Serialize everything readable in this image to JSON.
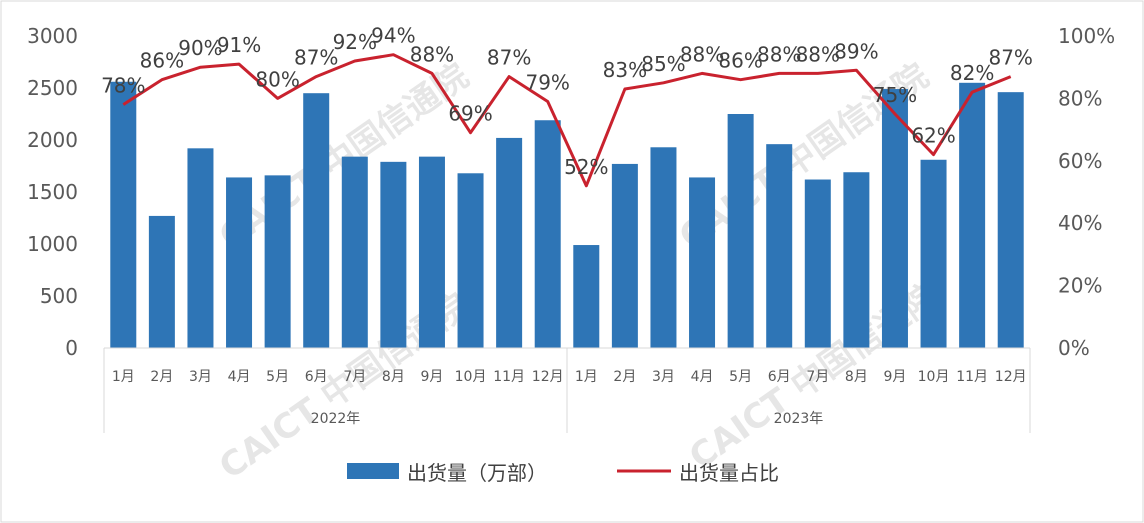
{
  "chart_data": {
    "type": "bar+line",
    "categories": [
      "1月",
      "2月",
      "3月",
      "4月",
      "5月",
      "6月",
      "7月",
      "8月",
      "9月",
      "10月",
      "11月",
      "12月",
      "1月",
      "2月",
      "3月",
      "4月",
      "5月",
      "6月",
      "7月",
      "8月",
      "9月",
      "10月",
      "11月",
      "12月"
    ],
    "groups": [
      {
        "label": "2022年",
        "from": 0,
        "to": 11
      },
      {
        "label": "2023年",
        "from": 12,
        "to": 23
      }
    ],
    "series": [
      {
        "name": "出货量（万部）",
        "type": "bar",
        "axis": "left",
        "color": "#2e75b6",
        "values": [
          2560,
          1270,
          1920,
          1640,
          1660,
          2450,
          1840,
          1790,
          1840,
          1680,
          2020,
          2190,
          990,
          1770,
          1930,
          1640,
          2250,
          1960,
          1620,
          1690,
          2490,
          1810,
          2550,
          2460
        ]
      },
      {
        "name": "出货量占比",
        "type": "line",
        "axis": "right",
        "color": "#c9222e",
        "values": [
          78,
          86,
          90,
          91,
          80,
          87,
          92,
          94,
          88,
          69,
          87,
          79,
          52,
          83,
          85,
          88,
          86,
          88,
          88,
          89,
          75,
          62,
          82,
          87
        ],
        "labels": [
          "78%",
          "86%",
          "90%",
          "91%",
          "80%",
          "87%",
          "92%",
          "94%",
          "88%",
          "69%",
          "87%",
          "79%",
          "52%",
          "83%",
          "85%",
          "88%",
          "86%",
          "88%",
          "88%",
          "89%",
          "75%",
          "62%",
          "82%",
          "87%"
        ]
      }
    ],
    "left_axis": {
      "min": 0,
      "max": 3000,
      "ticks": [
        "0",
        "500",
        "1000",
        "1500",
        "2000",
        "2500",
        "3000"
      ]
    },
    "right_axis": {
      "min": 0,
      "max": 100,
      "ticks": [
        "0%",
        "20%",
        "40%",
        "60%",
        "80%",
        "100%"
      ]
    },
    "legend": {
      "position": "bottom"
    },
    "grid": false
  },
  "watermark": "CAICT 中国信通院"
}
